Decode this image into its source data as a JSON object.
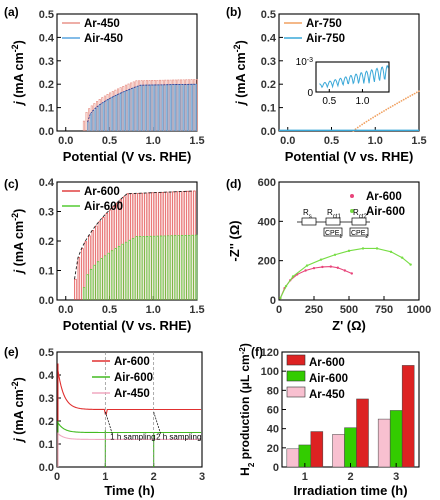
{
  "chart_data": [
    {
      "panel": "(a)",
      "type": "line",
      "xlabel": "Potential (V vs. RHE)",
      "ylabel_main": "j",
      "ylabel_unit": " (mA cm",
      "ylabel_sup": "-2",
      "ylabel_end": ")",
      "xlim": [
        -0.1,
        1.5
      ],
      "ylim": [
        0,
        0.5
      ],
      "xticks": [
        "0.0",
        "0.5",
        "1.0",
        "1.5"
      ],
      "yticks": [
        "0.0",
        "0.1",
        "0.2",
        "0.3",
        "0.4",
        "0.5"
      ],
      "legend_placement": "top-left",
      "series": [
        {
          "name": "Ar-450",
          "color": "#e8948a",
          "style": "chopped",
          "onset": 0.2,
          "y_end": 0.22
        },
        {
          "name": "Air-450",
          "color": "#5aa6e0",
          "style": "chopped",
          "onset": 0.25,
          "y_end": 0.2
        }
      ],
      "envelope_color": "#2b2f8a"
    },
    {
      "panel": "(b)",
      "type": "line",
      "xlabel": "Potential (V vs. RHE)",
      "ylabel_main": "j",
      "ylabel_unit": " (mA cm",
      "ylabel_sup": "-2",
      "ylabel_end": ")",
      "xlim": [
        -0.1,
        1.5
      ],
      "ylim": [
        0,
        0.5
      ],
      "xticks": [
        "0.0",
        "0.5",
        "1.0",
        "1.5"
      ],
      "yticks": [
        "0.0",
        "0.1",
        "0.2",
        "0.3",
        "0.4",
        "0.5"
      ],
      "legend_placement": "top-left",
      "series": [
        {
          "name": "Ar-750",
          "color": "#f0a060",
          "style": "dotted",
          "onset": 0.75,
          "y_end": 0.17
        },
        {
          "name": "Air-750",
          "color": "#3aa8d8",
          "style": "flat",
          "y_end": 0.003
        }
      ],
      "inset": {
        "ytick_label": "10",
        "ytick_sup": "-3",
        "ytick_zero": "0",
        "xticks": [
          "0.5",
          "1.0"
        ],
        "color": "#3aa8d8"
      }
    },
    {
      "panel": "(c)",
      "type": "line",
      "xlabel": "Potential (V vs. RHE)",
      "ylabel_main": "j",
      "ylabel_unit": " (mA cm",
      "ylabel_sup": "-2",
      "ylabel_end": ")",
      "xlim": [
        -0.1,
        1.5
      ],
      "ylim": [
        0,
        0.4
      ],
      "xticks": [
        "0.0",
        "0.5",
        "1.0",
        "1.5"
      ],
      "yticks": [
        "0.0",
        "0.1",
        "0.2",
        "0.3",
        "0.4"
      ],
      "legend_placement": "top-left",
      "series": [
        {
          "name": "Ar-600",
          "color": "#e04040",
          "style": "chopped",
          "onset": 0.1,
          "y_end": 0.37
        },
        {
          "name": "Air-600",
          "color": "#55cc33",
          "style": "chopped",
          "onset": 0.2,
          "y_end": 0.22
        }
      ],
      "envelope_color": "#222222"
    },
    {
      "panel": "(d)",
      "type": "scatter",
      "xlabel_main": "Z'",
      "xlabel_unit": " (Ω)",
      "ylabel_main": "-Z''",
      "ylabel_unit": " (Ω)",
      "xlim": [
        0,
        1000
      ],
      "ylim": [
        0,
        600
      ],
      "xticks": [
        "0",
        "250",
        "500",
        "750",
        "1000"
      ],
      "yticks": [
        "0",
        "200",
        "400",
        "600"
      ],
      "legend_placement": "top-right",
      "series": [
        {
          "name": "Ar-600",
          "color": "#e8447a",
          "x": [
            10,
            40,
            80,
            130,
            190,
            250,
            310,
            370,
            420,
            470,
            520
          ],
          "y": [
            10,
            60,
            100,
            130,
            150,
            162,
            168,
            170,
            164,
            150,
            135
          ]
        },
        {
          "name": "Air-600",
          "color": "#77dd44",
          "x": [
            10,
            50,
            100,
            200,
            300,
            400,
            500,
            600,
            700,
            800,
            880,
            940
          ],
          "y": [
            10,
            70,
            120,
            175,
            205,
            230,
            250,
            262,
            262,
            245,
            215,
            180
          ]
        }
      ],
      "circuit_labels": [
        "R",
        "s",
        "R",
        "ct1",
        "R",
        "ct2",
        "CPE",
        "1",
        "CPE",
        "2"
      ]
    },
    {
      "panel": "(e)",
      "type": "line",
      "xlabel": "Time (h)",
      "ylabel_main": "j",
      "ylabel_unit": " (mA cm",
      "ylabel_sup": "-2",
      "ylabel_end": ")",
      "xlim": [
        0,
        3
      ],
      "ylim": [
        0,
        0.5
      ],
      "xticks": [
        "0",
        "1",
        "2",
        "3"
      ],
      "yticks": [
        "0.0",
        "0.1",
        "0.2",
        "0.3",
        "0.4",
        "0.5"
      ],
      "legend_placement": "top-right",
      "series": [
        {
          "name": "Ar-600",
          "color": "#e03030",
          "start": 0.45,
          "end": 0.25
        },
        {
          "name": "Air-600",
          "color": "#44bb22",
          "start": 0.2,
          "end": 0.15
        },
        {
          "name": "Ar-450",
          "color": "#f0a8c0",
          "start": 0.15,
          "end": 0.12
        }
      ],
      "annotations": [
        "1 h sampling",
        "2 h sampling"
      ]
    },
    {
      "panel": "(f)",
      "type": "bar",
      "xlabel": "Irradiation time (h)",
      "ylabel_main": "H",
      "ylabel_sub": "2",
      "ylabel_rest": " production (μL cm",
      "ylabel_sup": "-2",
      "ylabel_end": ")",
      "categories": [
        "1",
        "2",
        "3"
      ],
      "ylim": [
        0,
        120
      ],
      "yticks": [
        "0",
        "20",
        "40",
        "60",
        "80",
        "100",
        "120"
      ],
      "legend_placement": "top-left",
      "series": [
        {
          "name": "Ar-450",
          "color": "#f8c0d0",
          "values": [
            19,
            34,
            50
          ]
        },
        {
          "name": "Air-600",
          "color": "#33cc00",
          "values": [
            23,
            41,
            59
          ]
        },
        {
          "name": "Ar-600",
          "color": "#dd2222",
          "values": [
            37,
            71,
            106
          ]
        }
      ],
      "legend_order": [
        "Ar-600",
        "Air-600",
        "Ar-450"
      ]
    }
  ]
}
